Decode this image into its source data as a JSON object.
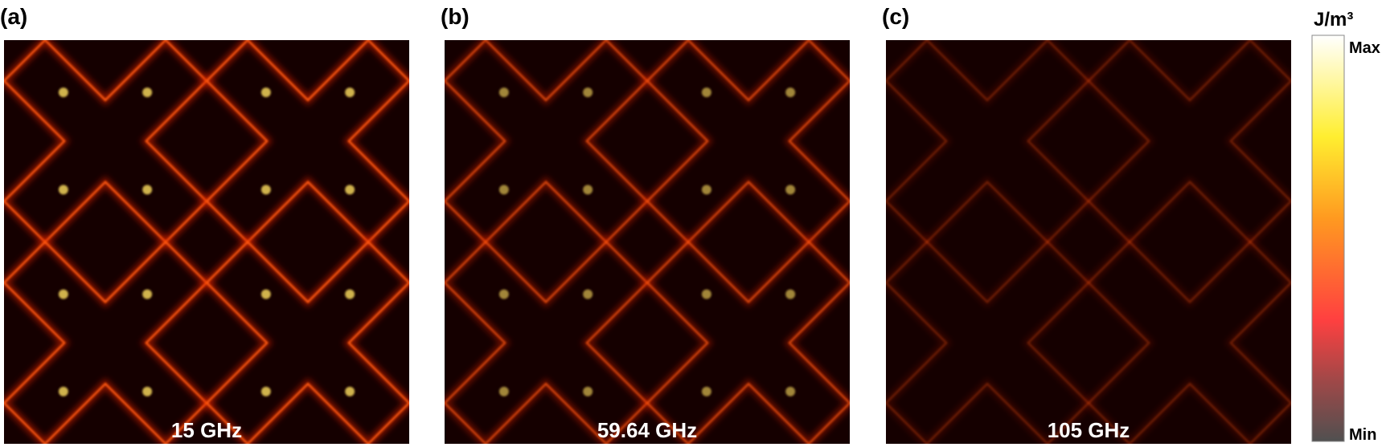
{
  "panels": [
    {
      "label": "(a)",
      "frequency": "15 GHz"
    },
    {
      "label": "(b)",
      "frequency": "59.64 GHz"
    },
    {
      "label": "(c)",
      "frequency": "105 GHz"
    }
  ],
  "colorbar": {
    "unit": "J/m³",
    "max": "Max",
    "min": "Min"
  }
}
